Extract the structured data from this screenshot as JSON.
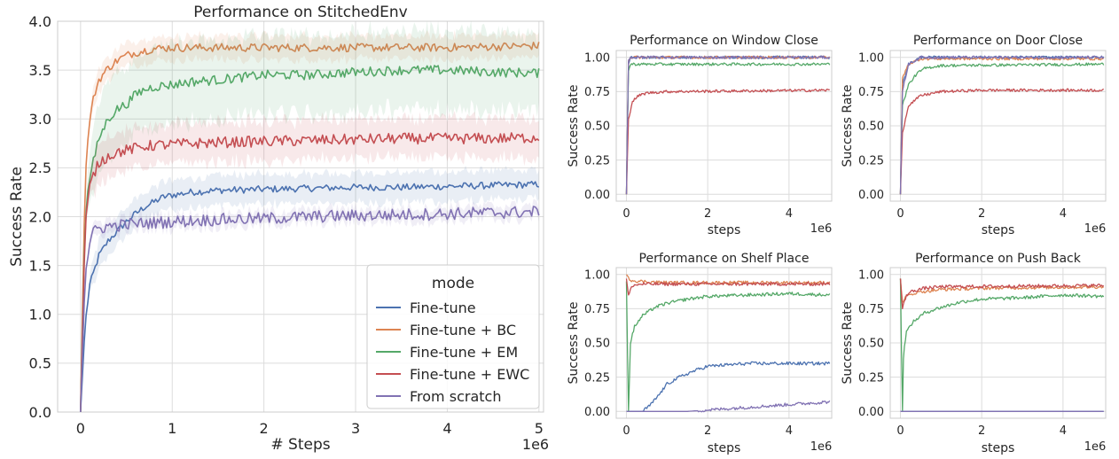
{
  "chart_data": [
    {
      "type": "line",
      "title": "Performance on StitchedEnv",
      "xlabel": "# Steps",
      "ylabel": "Success Rate",
      "x_multiplier_label": "1e6",
      "xlim": [
        -0.25,
        5.05
      ],
      "ylim": [
        0,
        4.0
      ],
      "xticks": [
        0,
        1,
        2,
        3,
        4,
        5
      ],
      "xtick_labels": [
        "0",
        "1",
        "2",
        "3",
        "4",
        "5"
      ],
      "yticks": [
        0,
        0.5,
        1.0,
        1.5,
        2.0,
        2.5,
        3.0,
        3.5,
        4.0
      ],
      "ytick_labels": [
        "0.0",
        "0.5",
        "1.0",
        "1.5",
        "2.0",
        "2.5",
        "3.0",
        "3.5",
        "4.0"
      ],
      "grid": true,
      "legend": {
        "title": "mode",
        "placement": "lower-right"
      },
      "series": [
        {
          "name": "Fine-tune",
          "color": "#4c72b0",
          "x": [
            0,
            0.05,
            0.1,
            0.2,
            0.3,
            0.4,
            0.5,
            0.6,
            0.7,
            0.8,
            0.9,
            1.0,
            1.2,
            1.5,
            2.0,
            2.5,
            3.0,
            3.5,
            4.0,
            4.5,
            5.0
          ],
          "y": [
            0.0,
            0.9,
            1.3,
            1.6,
            1.75,
            1.85,
            1.95,
            2.03,
            2.1,
            2.15,
            2.2,
            2.22,
            2.25,
            2.27,
            2.28,
            2.29,
            2.3,
            2.3,
            2.31,
            2.32,
            2.33
          ],
          "band": 0.15
        },
        {
          "name": "Fine-tune + BC",
          "color": "#dd8452",
          "x": [
            0,
            0.05,
            0.1,
            0.15,
            0.2,
            0.3,
            0.4,
            0.5,
            0.6,
            0.7,
            0.8,
            1.0,
            1.5,
            2.0,
            2.5,
            3.0,
            3.5,
            4.0,
            4.5,
            5.0
          ],
          "y": [
            0.0,
            2.4,
            3.0,
            3.25,
            3.4,
            3.52,
            3.6,
            3.65,
            3.68,
            3.7,
            3.72,
            3.73,
            3.73,
            3.73,
            3.73,
            3.73,
            3.73,
            3.73,
            3.74,
            3.75
          ],
          "band": 0.12
        },
        {
          "name": "Fine-tune + EM",
          "color": "#55a868",
          "x": [
            0,
            0.05,
            0.1,
            0.15,
            0.2,
            0.3,
            0.4,
            0.5,
            0.6,
            0.7,
            0.8,
            1.0,
            1.2,
            1.5,
            2.0,
            2.5,
            3.0,
            3.5,
            4.0,
            4.5,
            5.0
          ],
          "y": [
            0.0,
            2.0,
            2.4,
            2.6,
            2.8,
            3.0,
            3.1,
            3.15,
            3.25,
            3.3,
            3.33,
            3.35,
            3.38,
            3.4,
            3.45,
            3.45,
            3.48,
            3.5,
            3.5,
            3.48,
            3.47
          ],
          "band": 0.4
        },
        {
          "name": "Fine-tune + EWC",
          "color": "#c44e52",
          "x": [
            0,
            0.05,
            0.1,
            0.15,
            0.2,
            0.3,
            0.4,
            0.5,
            0.6,
            0.7,
            0.8,
            1.0,
            1.5,
            2.0,
            2.5,
            3.0,
            3.5,
            4.0,
            4.5,
            5.0
          ],
          "y": [
            0.0,
            1.9,
            2.3,
            2.45,
            2.55,
            2.62,
            2.66,
            2.68,
            2.7,
            2.72,
            2.73,
            2.74,
            2.76,
            2.77,
            2.78,
            2.79,
            2.8,
            2.8,
            2.8,
            2.81
          ],
          "band": 0.2
        },
        {
          "name": "From scratch",
          "color": "#8172b3",
          "x": [
            0,
            0.05,
            0.1,
            0.15,
            0.2,
            0.3,
            0.5,
            1.0,
            1.5,
            2.0,
            2.5,
            3.0,
            3.5,
            4.0,
            4.5,
            5.0
          ],
          "y": [
            0.0,
            1.4,
            1.75,
            1.85,
            1.88,
            1.9,
            1.92,
            1.95,
            1.97,
            1.98,
            2.0,
            2.01,
            2.02,
            2.03,
            2.04,
            2.05
          ],
          "band": 0.07
        }
      ]
    },
    {
      "type": "line",
      "title": "Performance on Window Close",
      "xlabel": "steps",
      "ylabel": "Success Rate",
      "x_multiplier_label": "1e6",
      "xlim": [
        -0.25,
        5.05
      ],
      "ylim": [
        -0.05,
        1.05
      ],
      "xticks": [
        0,
        2,
        4
      ],
      "xtick_labels": [
        "0",
        "2",
        "4"
      ],
      "yticks": [
        0,
        0.25,
        0.5,
        0.75,
        1.0
      ],
      "ytick_labels": [
        "0.00",
        "0.25",
        "0.50",
        "0.75",
        "1.00"
      ],
      "grid": true,
      "series": [
        {
          "name": "Fine-tune",
          "color": "#4c72b0",
          "x": [
            0,
            0.05,
            0.1,
            5.0
          ],
          "y": [
            0.0,
            0.95,
            1.0,
            1.0
          ]
        },
        {
          "name": "Fine-tune + BC",
          "color": "#dd8452",
          "x": [
            0,
            0.05,
            0.1,
            5.0
          ],
          "y": [
            0.0,
            0.97,
            1.0,
            1.0
          ]
        },
        {
          "name": "Fine-tune + EM",
          "color": "#55a868",
          "x": [
            0,
            0.05,
            0.1,
            0.5,
            5.0
          ],
          "y": [
            0.0,
            0.9,
            0.95,
            0.95,
            0.95
          ]
        },
        {
          "name": "Fine-tune + EWC",
          "color": "#c44e52",
          "x": [
            0,
            0.05,
            0.15,
            0.3,
            0.5,
            1.0,
            5.0
          ],
          "y": [
            0.0,
            0.55,
            0.68,
            0.72,
            0.74,
            0.75,
            0.76
          ]
        },
        {
          "name": "From scratch",
          "color": "#8172b3",
          "x": [
            0,
            0.05,
            0.1,
            5.0
          ],
          "y": [
            0.0,
            0.98,
            1.0,
            1.0
          ]
        }
      ]
    },
    {
      "type": "line",
      "title": "Performance on Door Close",
      "xlabel": "steps",
      "ylabel": "Success Rate",
      "x_multiplier_label": "1e6",
      "xlim": [
        -0.25,
        5.05
      ],
      "ylim": [
        -0.05,
        1.05
      ],
      "xticks": [
        0,
        2,
        4
      ],
      "xtick_labels": [
        "0",
        "2",
        "4"
      ],
      "yticks": [
        0,
        0.25,
        0.5,
        0.75,
        1.0
      ],
      "ytick_labels": [
        "0.00",
        "0.25",
        "0.50",
        "0.75",
        "1.00"
      ],
      "grid": true,
      "series": [
        {
          "name": "Fine-tune",
          "color": "#4c72b0",
          "x": [
            0,
            0.05,
            0.2,
            0.5,
            5.0
          ],
          "y": [
            0.0,
            0.8,
            0.95,
            1.0,
            1.0
          ]
        },
        {
          "name": "Fine-tune + BC",
          "color": "#dd8452",
          "x": [
            0,
            0.05,
            0.2,
            0.5,
            5.0
          ],
          "y": [
            0.0,
            0.85,
            0.95,
            0.99,
            0.99
          ]
        },
        {
          "name": "Fine-tune + EM",
          "color": "#55a868",
          "x": [
            0,
            0.05,
            0.2,
            0.4,
            0.6,
            1.0,
            5.0
          ],
          "y": [
            0.0,
            0.65,
            0.8,
            0.88,
            0.92,
            0.94,
            0.95
          ]
        },
        {
          "name": "Fine-tune + EWC",
          "color": "#c44e52",
          "x": [
            0,
            0.05,
            0.2,
            0.5,
            1.0,
            2.0,
            5.0
          ],
          "y": [
            0.0,
            0.45,
            0.65,
            0.72,
            0.75,
            0.76,
            0.76
          ]
        },
        {
          "name": "From scratch",
          "color": "#8172b3",
          "x": [
            0,
            0.05,
            0.2,
            0.5,
            5.0
          ],
          "y": [
            0.0,
            0.75,
            0.95,
            1.0,
            1.0
          ]
        }
      ]
    },
    {
      "type": "line",
      "title": "Performance on Shelf Place",
      "xlabel": "steps",
      "ylabel": "Success Rate",
      "x_multiplier_label": "1e6",
      "xlim": [
        -0.25,
        5.05
      ],
      "ylim": [
        -0.05,
        1.05
      ],
      "xticks": [
        0,
        2,
        4
      ],
      "xtick_labels": [
        "0",
        "2",
        "4"
      ],
      "yticks": [
        0,
        0.25,
        0.5,
        0.75,
        1.0
      ],
      "ytick_labels": [
        "0.00",
        "0.25",
        "0.50",
        "0.75",
        "1.00"
      ],
      "grid": true,
      "series": [
        {
          "name": "Fine-tune",
          "color": "#4c72b0",
          "x": [
            0,
            0.4,
            0.6,
            0.8,
            1.0,
            1.3,
            1.7,
            2.0,
            3.0,
            4.0,
            5.0
          ],
          "y": [
            0.0,
            0.0,
            0.05,
            0.12,
            0.2,
            0.25,
            0.3,
            0.33,
            0.35,
            0.35,
            0.35
          ]
        },
        {
          "name": "Fine-tune + BC",
          "color": "#dd8452",
          "x": [
            0,
            0.1,
            0.3,
            1.0,
            5.0
          ],
          "y": [
            1.0,
            0.96,
            0.95,
            0.94,
            0.94
          ]
        },
        {
          "name": "Fine-tune + EM",
          "color": "#55a868",
          "x": [
            0,
            0.05,
            0.1,
            0.2,
            0.4,
            0.7,
            1.0,
            1.5,
            2.0,
            3.0,
            4.0,
            5.0
          ],
          "y": [
            0.95,
            0.0,
            0.5,
            0.62,
            0.7,
            0.76,
            0.79,
            0.82,
            0.84,
            0.85,
            0.86,
            0.85
          ]
        },
        {
          "name": "Fine-tune + EWC",
          "color": "#c44e52",
          "x": [
            0,
            0.05,
            0.15,
            0.4,
            1.0,
            5.0
          ],
          "y": [
            0.97,
            0.85,
            0.92,
            0.93,
            0.93,
            0.93
          ]
        },
        {
          "name": "From scratch",
          "color": "#8172b3",
          "x": [
            0,
            1.5,
            2.0,
            3.0,
            4.0,
            5.0
          ],
          "y": [
            0.0,
            0.0,
            0.01,
            0.03,
            0.05,
            0.07
          ]
        }
      ]
    },
    {
      "type": "line",
      "title": "Performance on Push Back",
      "xlabel": "steps",
      "ylabel": "Success Rate",
      "x_multiplier_label": "1e6",
      "xlim": [
        -0.25,
        5.05
      ],
      "ylim": [
        -0.05,
        1.05
      ],
      "xticks": [
        0,
        2,
        4
      ],
      "xtick_labels": [
        "0",
        "2",
        "4"
      ],
      "yticks": [
        0,
        0.25,
        0.5,
        0.75,
        1.0
      ],
      "ytick_labels": [
        "0.00",
        "0.25",
        "0.50",
        "0.75",
        "1.00"
      ],
      "grid": true,
      "series": [
        {
          "name": "Fine-tune",
          "color": "#4c72b0",
          "x": [
            0,
            5.0
          ],
          "y": [
            0.0,
            0.0
          ]
        },
        {
          "name": "Fine-tune + BC",
          "color": "#dd8452",
          "x": [
            0,
            0.05,
            0.15,
            0.4,
            1.0,
            2.0,
            5.0
          ],
          "y": [
            0.97,
            0.8,
            0.84,
            0.87,
            0.89,
            0.9,
            0.91
          ]
        },
        {
          "name": "Fine-tune + EM",
          "color": "#55a868",
          "x": [
            0,
            0.05,
            0.08,
            0.15,
            0.3,
            0.6,
            1.0,
            1.5,
            2.0,
            3.0,
            4.0,
            5.0
          ],
          "y": [
            0.97,
            0.0,
            0.45,
            0.58,
            0.65,
            0.72,
            0.76,
            0.8,
            0.82,
            0.83,
            0.85,
            0.84
          ]
        },
        {
          "name": "Fine-tune + EWC",
          "color": "#c44e52",
          "x": [
            0,
            0.05,
            0.15,
            0.3,
            0.6,
            1.0,
            5.0
          ],
          "y": [
            0.97,
            0.75,
            0.85,
            0.88,
            0.9,
            0.91,
            0.92
          ]
        },
        {
          "name": "From scratch",
          "color": "#8172b3",
          "x": [
            0,
            5.0
          ],
          "y": [
            0.0,
            0.0
          ]
        }
      ]
    }
  ]
}
